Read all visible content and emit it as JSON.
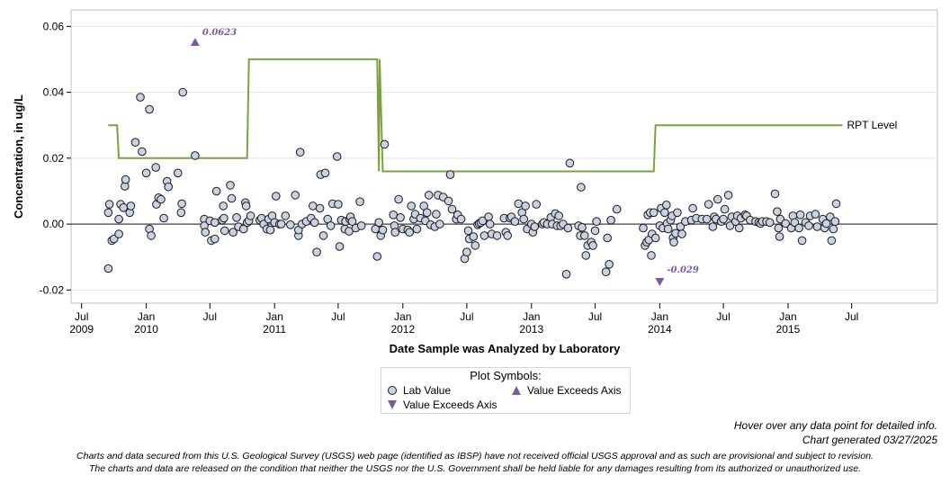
{
  "chart_data": {
    "type": "scatter",
    "xlabel": "Date Sample was Analyzed by Laboratory",
    "ylabel": "Concentration, in ug/L",
    "xlim": [
      "2009-06-01",
      "2016-03-01"
    ],
    "ylim": [
      -0.024,
      0.065
    ],
    "y_ticks": [
      -0.02,
      0.0,
      0.02,
      0.04,
      0.06
    ],
    "y_tick_labels": [
      "-0.02",
      "0.00",
      "0.02",
      "0.04",
      "0.06"
    ],
    "x_ticks": [
      {
        "date": "2009-07-01",
        "label": "Jul",
        "year": "2009"
      },
      {
        "date": "2010-01-01",
        "label": "Jan",
        "year": "2010"
      },
      {
        "date": "2010-07-01",
        "label": "Jul",
        "year": ""
      },
      {
        "date": "2011-01-01",
        "label": "Jan",
        "year": "2011"
      },
      {
        "date": "2011-07-01",
        "label": "Jul",
        "year": ""
      },
      {
        "date": "2012-01-01",
        "label": "Jan",
        "year": "2012"
      },
      {
        "date": "2012-07-01",
        "label": "Jul",
        "year": ""
      },
      {
        "date": "2013-01-01",
        "label": "Jan",
        "year": "2013"
      },
      {
        "date": "2013-07-01",
        "label": "Jul",
        "year": ""
      },
      {
        "date": "2014-01-01",
        "label": "Jan",
        "year": "2014"
      },
      {
        "date": "2014-07-01",
        "label": "Jul",
        "year": ""
      },
      {
        "date": "2015-01-01",
        "label": "Jan",
        "year": "2015"
      },
      {
        "date": "2015-07-01",
        "label": "Jul",
        "year": ""
      }
    ],
    "grid": true,
    "zero_line": true,
    "colors": {
      "point_fill": "#c7d2e2",
      "point_edge": "#1a1a1a",
      "rpt_line": "#7aa33e",
      "exceeds": "#7b5aa0",
      "zero_line": "#606060",
      "grid": "#e3e3e3"
    },
    "rpt_level": {
      "label": "RPT Level",
      "points": [
        [
          "2009-09-15",
          0.03
        ],
        [
          "2009-10-10",
          0.03
        ],
        [
          "2009-10-15",
          0.02
        ],
        [
          "2010-10-15",
          0.02
        ],
        [
          "2010-10-20",
          0.05
        ],
        [
          "2011-10-20",
          0.05
        ],
        [
          "2011-10-25",
          0.016
        ],
        [
          "2011-10-27",
          0.05
        ],
        [
          "2011-11-05",
          0.016
        ],
        [
          "2013-12-15",
          0.016
        ],
        [
          "2013-12-20",
          0.03
        ],
        [
          "2015-06-05",
          0.03
        ]
      ]
    },
    "exceeds_axis": [
      {
        "date": "2010-05-20",
        "value": 0.0623,
        "label": "0.0623",
        "direction": "up"
      },
      {
        "date": "2014-01-01",
        "value": -0.029,
        "label": "-0.029",
        "direction": "down"
      }
    ],
    "lab_values": [
      [
        "2009-09-15",
        -0.0135
      ],
      [
        "2009-09-15",
        0.0035
      ],
      [
        "2009-09-18",
        0.006
      ],
      [
        "2009-09-25",
        -0.005
      ],
      [
        "2009-10-01",
        -0.0045
      ],
      [
        "2009-10-15",
        -0.003
      ],
      [
        "2009-10-15",
        0.0015
      ],
      [
        "2009-10-20",
        0.006
      ],
      [
        "2009-10-28",
        0.005
      ],
      [
        "2009-11-01",
        0.0115
      ],
      [
        "2009-11-03",
        0.0135
      ],
      [
        "2009-11-15",
        0.0035
      ],
      [
        "2009-11-18",
        0.0055
      ],
      [
        "2009-12-01",
        0.0248
      ],
      [
        "2009-12-15",
        0.0385
      ],
      [
        "2009-12-20",
        0.022
      ],
      [
        "2010-01-01",
        0.0155
      ],
      [
        "2010-01-10",
        -0.0015
      ],
      [
        "2010-01-15",
        -0.0035
      ],
      [
        "2010-01-10",
        0.0348
      ],
      [
        "2010-01-28",
        0.0172
      ],
      [
        "2010-01-30",
        0.006
      ],
      [
        "2010-02-05",
        0.008
      ],
      [
        "2010-02-12",
        0.0075
      ],
      [
        "2010-02-20",
        0.0018
      ],
      [
        "2010-03-01",
        0.013
      ],
      [
        "2010-03-05",
        0.0113
      ],
      [
        "2010-04-01",
        0.0155
      ],
      [
        "2010-04-10",
        0.0035
      ],
      [
        "2010-04-12",
        0.0062
      ],
      [
        "2010-04-15",
        0.04
      ],
      [
        "2010-05-20",
        0.0208
      ],
      [
        "2010-06-15",
        0.0015
      ],
      [
        "2010-06-15",
        -0.0005
      ],
      [
        "2010-06-18",
        -0.0025
      ],
      [
        "2010-07-01",
        0.001
      ],
      [
        "2010-07-05",
        -0.005
      ],
      [
        "2010-07-15",
        -0.0045
      ],
      [
        "2010-07-15",
        0.0005
      ],
      [
        "2010-07-20",
        0.01
      ],
      [
        "2010-08-05",
        0.0012
      ],
      [
        "2010-08-08",
        0.0055
      ],
      [
        "2010-08-10",
        0.0018
      ],
      [
        "2010-08-12",
        -0.002
      ],
      [
        "2010-08-28",
        0.0118
      ],
      [
        "2010-09-01",
        0.0078
      ],
      [
        "2010-09-05",
        -0.0025
      ],
      [
        "2010-09-15",
        0.002
      ],
      [
        "2010-09-20",
        -0.0008
      ],
      [
        "2010-10-05",
        -0.0015
      ],
      [
        "2010-10-10",
        0.0065
      ],
      [
        "2010-10-12",
        0.0055
      ],
      [
        "2010-10-15",
        0.0005
      ],
      [
        "2010-10-20",
        0.001
      ],
      [
        "2010-10-25",
        0.0025
      ],
      [
        "2010-11-20",
        0.0012
      ],
      [
        "2010-11-25",
        0.0018
      ],
      [
        "2010-12-01",
        0.0
      ],
      [
        "2010-12-10",
        -0.0015
      ],
      [
        "2010-12-15",
        0.0015
      ],
      [
        "2010-12-20",
        -0.0018
      ],
      [
        "2010-12-25",
        0.0025
      ],
      [
        "2011-01-01",
        0.0005
      ],
      [
        "2011-01-05",
        0.0085
      ],
      [
        "2011-01-15",
        0.0
      ],
      [
        "2011-01-20",
        0.0
      ],
      [
        "2011-02-01",
        0.0025
      ],
      [
        "2011-02-15",
        -0.0002
      ],
      [
        "2011-03-01",
        0.0088
      ],
      [
        "2011-03-10",
        -0.0035
      ],
      [
        "2011-03-10",
        -0.0018
      ],
      [
        "2011-03-15",
        0.0218
      ],
      [
        "2011-03-20",
        0.0
      ],
      [
        "2011-04-01",
        0.0008
      ],
      [
        "2011-04-15",
        0.0018
      ],
      [
        "2011-04-20",
        0.0055
      ],
      [
        "2011-04-25",
        0.0005
      ],
      [
        "2011-05-01",
        -0.0085
      ],
      [
        "2011-05-10",
        0.0048
      ],
      [
        "2011-05-12",
        0.015
      ],
      [
        "2011-05-20",
        -0.0035
      ],
      [
        "2011-05-25",
        0.0155
      ],
      [
        "2011-06-01",
        0.0015
      ],
      [
        "2011-06-10",
        -0.0005
      ],
      [
        "2011-06-15",
        0.0062
      ],
      [
        "2011-06-28",
        0.0205
      ],
      [
        "2011-07-01",
        0.006
      ],
      [
        "2011-07-05",
        -0.0068
      ],
      [
        "2011-07-10",
        0.0012
      ],
      [
        "2011-07-20",
        -0.0015
      ],
      [
        "2011-07-22",
        0.0008
      ],
      [
        "2011-08-01",
        -0.0022
      ],
      [
        "2011-08-03",
        0.0015
      ],
      [
        "2011-08-05",
        0.0022
      ],
      [
        "2011-08-10",
        0.0008
      ],
      [
        "2011-08-20",
        -0.0012
      ],
      [
        "2011-09-01",
        0.0068
      ],
      [
        "2011-09-05",
        -0.0005
      ],
      [
        "2011-10-15",
        -0.0015
      ],
      [
        "2011-10-20",
        -0.0098
      ],
      [
        "2011-10-25",
        0.0005
      ],
      [
        "2011-10-30",
        -0.0035
      ],
      [
        "2011-11-05",
        -0.0018
      ],
      [
        "2011-11-10",
        0.0242
      ],
      [
        "2011-12-05",
        0.0028
      ],
      [
        "2011-12-08",
        -0.0005
      ],
      [
        "2011-12-10",
        -0.0025
      ],
      [
        "2011-12-20",
        0.0075
      ],
      [
        "2011-12-25",
        0.002
      ],
      [
        "2012-01-01",
        -0.0015
      ],
      [
        "2012-01-15",
        -0.0018
      ],
      [
        "2012-01-20",
        -0.0025
      ],
      [
        "2012-01-25",
        0.0055
      ],
      [
        "2012-02-01",
        0.0015
      ],
      [
        "2012-02-05",
        0.003
      ],
      [
        "2012-02-10",
        -0.0015
      ],
      [
        "2012-02-20",
        0.0018
      ],
      [
        "2012-03-01",
        0.0055
      ],
      [
        "2012-03-05",
        0.001
      ],
      [
        "2012-03-10",
        0.0035
      ],
      [
        "2012-03-15",
        0.0088
      ],
      [
        "2012-03-20",
        -0.0002
      ],
      [
        "2012-04-01",
        -0.0008
      ],
      [
        "2012-04-05",
        0.003
      ],
      [
        "2012-04-10",
        0.0088
      ],
      [
        "2012-04-15",
        0.0
      ],
      [
        "2012-04-25",
        0.0082
      ],
      [
        "2012-05-10",
        0.007
      ],
      [
        "2012-05-15",
        0.015
      ],
      [
        "2012-05-20",
        0.0045
      ],
      [
        "2012-06-01",
        0.0015
      ],
      [
        "2012-06-05",
        0.0028
      ],
      [
        "2012-06-15",
        0.0015
      ],
      [
        "2012-06-25",
        -0.0105
      ],
      [
        "2012-07-01",
        -0.0085
      ],
      [
        "2012-07-05",
        -0.002
      ],
      [
        "2012-07-08",
        -0.0045
      ],
      [
        "2012-07-20",
        -0.0038
      ],
      [
        "2012-07-25",
        -0.0065
      ],
      [
        "2012-08-01",
        -0.0002
      ],
      [
        "2012-08-05",
        0.0002
      ],
      [
        "2012-08-10",
        0.0005
      ],
      [
        "2012-08-15",
        0.001
      ],
      [
        "2012-08-20",
        -0.0035
      ],
      [
        "2012-09-01",
        0.0022
      ],
      [
        "2012-09-05",
        0.0
      ],
      [
        "2012-09-10",
        -0.003
      ],
      [
        "2012-09-25",
        -0.0035
      ],
      [
        "2012-10-15",
        0.0018
      ],
      [
        "2012-10-20",
        -0.0025
      ],
      [
        "2012-10-25",
        -0.0035
      ],
      [
        "2012-11-01",
        0.0018
      ],
      [
        "2012-11-05",
        0.0022
      ],
      [
        "2012-11-15",
        0.0008
      ],
      [
        "2012-11-25",
        0.0062
      ],
      [
        "2012-12-05",
        0.0035
      ],
      [
        "2012-12-10",
        0.0015
      ],
      [
        "2012-12-15",
        0.0055
      ],
      [
        "2012-12-20",
        -0.0015
      ],
      [
        "2013-01-01",
        0.0
      ],
      [
        "2013-01-05",
        -0.0025
      ],
      [
        "2013-01-10",
        -0.0008
      ],
      [
        "2013-01-15",
        0.006
      ],
      [
        "2013-02-01",
        0.0
      ],
      [
        "2013-02-05",
        0.0005
      ],
      [
        "2013-02-15",
        0.0
      ],
      [
        "2013-02-25",
        0.002
      ],
      [
        "2013-03-01",
        0.0
      ],
      [
        "2013-03-10",
        0.0032
      ],
      [
        "2013-03-15",
        -0.0005
      ],
      [
        "2013-03-20",
        0.0025
      ],
      [
        "2013-03-25",
        -0.0005
      ],
      [
        "2013-04-01",
        0.0
      ],
      [
        "2013-04-10",
        -0.0152
      ],
      [
        "2013-04-15",
        -0.0012
      ],
      [
        "2013-04-20",
        0.0185
      ],
      [
        "2013-05-15",
        -0.0005
      ],
      [
        "2013-05-20",
        -0.0035
      ],
      [
        "2013-05-22",
        0.0112
      ],
      [
        "2013-05-25",
        -0.001
      ],
      [
        "2013-06-01",
        -0.0035
      ],
      [
        "2013-06-05",
        -0.0095
      ],
      [
        "2013-06-10",
        -0.0065
      ],
      [
        "2013-06-20",
        -0.0055
      ],
      [
        "2013-06-25",
        -0.0065
      ],
      [
        "2013-07-01",
        -0.002
      ],
      [
        "2013-07-05",
        0.0008
      ],
      [
        "2013-08-01",
        -0.0145
      ],
      [
        "2013-08-05",
        -0.0042
      ],
      [
        "2013-08-10",
        -0.0122
      ],
      [
        "2013-08-15",
        0.0012
      ],
      [
        "2013-09-01",
        0.0045
      ],
      [
        "2013-11-15",
        -0.0012
      ],
      [
        "2013-11-20",
        -0.0065
      ],
      [
        "2013-11-25",
        -0.0055
      ],
      [
        "2013-11-28",
        0.0028
      ],
      [
        "2013-12-01",
        -0.0048
      ],
      [
        "2013-12-05",
        0.0035
      ],
      [
        "2013-12-08",
        -0.0095
      ],
      [
        "2013-12-10",
        -0.003
      ],
      [
        "2013-12-15",
        0.0035
      ],
      [
        "2013-12-20",
        -0.0042
      ],
      [
        "2014-01-01",
        -0.0005
      ],
      [
        "2014-01-05",
        0.0048
      ],
      [
        "2014-01-10",
        -0.0012
      ],
      [
        "2014-01-15",
        0.0035
      ],
      [
        "2014-01-20",
        0.0058
      ],
      [
        "2014-01-22",
        0.0002
      ],
      [
        "2014-01-25",
        -0.0015
      ],
      [
        "2014-02-01",
        0.0012
      ],
      [
        "2014-02-05",
        0.0025
      ],
      [
        "2014-02-08",
        -0.0042
      ],
      [
        "2014-02-10",
        -0.0055
      ],
      [
        "2014-02-15",
        -0.0028
      ],
      [
        "2014-02-20",
        0.0035
      ],
      [
        "2014-03-01",
        -0.0008
      ],
      [
        "2014-03-05",
        -0.003
      ],
      [
        "2014-03-15",
        0.0008
      ],
      [
        "2014-04-01",
        0.0012
      ],
      [
        "2014-04-05",
        0.0048
      ],
      [
        "2014-04-15",
        0.0018
      ],
      [
        "2014-05-01",
        0.0015
      ],
      [
        "2014-05-15",
        0.0015
      ],
      [
        "2014-05-20",
        0.006
      ],
      [
        "2014-06-01",
        -0.0008
      ],
      [
        "2014-06-05",
        0.0022
      ],
      [
        "2014-06-10",
        0.0015
      ],
      [
        "2014-06-15",
        0.0075
      ],
      [
        "2014-06-25",
        0.0008
      ],
      [
        "2014-07-01",
        0.0015
      ],
      [
        "2014-07-05",
        0.0045
      ],
      [
        "2014-07-15",
        0.0088
      ],
      [
        "2014-07-20",
        -0.0005
      ],
      [
        "2014-07-25",
        0.0022
      ],
      [
        "2014-08-05",
        0.0008
      ],
      [
        "2014-08-10",
        0.0025
      ],
      [
        "2014-08-15",
        -0.0012
      ],
      [
        "2014-08-20",
        0.0018
      ],
      [
        "2014-09-01",
        0.0028
      ],
      [
        "2014-09-05",
        0.0025
      ],
      [
        "2014-09-15",
        0.0012
      ],
      [
        "2014-10-01",
        0.0008
      ],
      [
        "2014-10-10",
        0.0005
      ],
      [
        "2014-10-15",
        0.0002
      ],
      [
        "2014-10-20",
        0.0008
      ],
      [
        "2014-11-01",
        0.0008
      ],
      [
        "2014-11-10",
        0.0005
      ],
      [
        "2014-11-25",
        0.0092
      ],
      [
        "2014-12-01",
        0.0038
      ],
      [
        "2014-12-05",
        -0.0012
      ],
      [
        "2014-12-08",
        -0.0038
      ],
      [
        "2014-12-10",
        0.0015
      ],
      [
        "2014-12-25",
        0.0002
      ],
      [
        "2015-01-10",
        -0.0012
      ],
      [
        "2015-01-15",
        0.0025
      ],
      [
        "2015-01-20",
        0.0005
      ],
      [
        "2015-02-01",
        -0.0012
      ],
      [
        "2015-02-05",
        0.0028
      ],
      [
        "2015-02-10",
        -0.005
      ],
      [
        "2015-02-20",
        0.0005
      ],
      [
        "2015-03-01",
        -0.0005
      ],
      [
        "2015-03-05",
        0.0025
      ],
      [
        "2015-03-20",
        0.003
      ],
      [
        "2015-03-25",
        -0.0008
      ],
      [
        "2015-04-10",
        0.0015
      ],
      [
        "2015-04-15",
        -0.0012
      ],
      [
        "2015-04-20",
        0.0002
      ],
      [
        "2015-05-01",
        0.0022
      ],
      [
        "2015-05-05",
        -0.005
      ],
      [
        "2015-05-10",
        -0.0015
      ],
      [
        "2015-05-15",
        0.0008
      ],
      [
        "2015-05-18",
        0.0062
      ]
    ]
  },
  "legend": {
    "title": "Plot Symbols:",
    "lab_value": "Lab Value",
    "exceeds_up": "Value Exceeds Axis",
    "exceeds_down": "Value Exceeds Axis"
  },
  "notes": {
    "hover": "Hover over any data point for detailed info.",
    "generated": "Chart generated 03/27/2025"
  },
  "disclaimer": {
    "line1": "Charts and data secured from this U.S. Geological Survey (USGS) web page (identified as IBSP) have not received official USGS approval and as such are provisional and subject to revision.",
    "line2": "The charts and data are released on the condition that neither the USGS nor the U.S. Government shall be held liable for any damages resulting from its authorized or unauthorized use."
  }
}
